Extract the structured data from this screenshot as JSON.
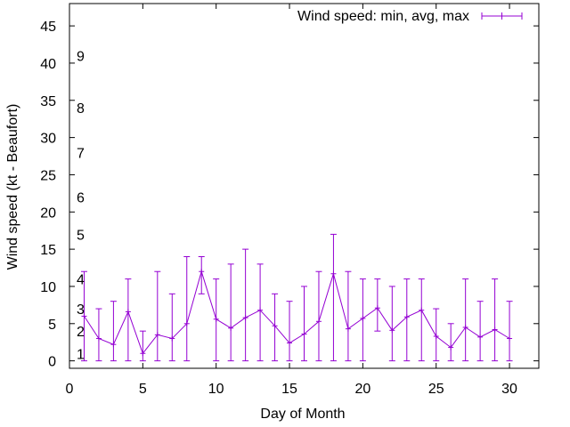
{
  "chart_data": {
    "type": "line",
    "title": "",
    "xlabel": "Day of Month",
    "ylabel": "Wind speed (kt - Beaufort)",
    "xlim": [
      0,
      32
    ],
    "ylim": [
      -1,
      48
    ],
    "x_ticks": [
      0,
      5,
      10,
      15,
      20,
      25,
      30
    ],
    "y_ticks": [
      0,
      5,
      10,
      15,
      20,
      25,
      30,
      35,
      40,
      45
    ],
    "grid": false,
    "legend": {
      "position": "top-right",
      "label": "Wind speed: min, avg, max"
    },
    "series_color": "#9400d3",
    "beaufort_labels": [
      {
        "label": "1",
        "value": 1
      },
      {
        "label": "2",
        "value": 4
      },
      {
        "label": "3",
        "value": 7
      },
      {
        "label": "4",
        "value": 11
      },
      {
        "label": "5",
        "value": 17
      },
      {
        "label": "6",
        "value": 22
      },
      {
        "label": "7",
        "value": 28
      },
      {
        "label": "8",
        "value": 34
      },
      {
        "label": "9",
        "value": 41
      }
    ],
    "series": [
      {
        "name": "Wind speed: min, avg, max",
        "x": [
          1,
          2,
          3,
          4,
          5,
          6,
          7,
          8,
          9,
          10,
          11,
          12,
          13,
          14,
          15,
          16,
          17,
          18,
          19,
          20,
          21,
          22,
          23,
          24,
          25,
          26,
          27,
          28,
          29,
          30
        ],
        "avg": [
          6,
          3,
          2.2,
          6.6,
          1,
          3.5,
          3,
          5,
          12,
          5.6,
          4.4,
          5.8,
          6.8,
          4.7,
          2.4,
          3.6,
          5.3,
          11.7,
          4.3,
          5.7,
          7.1,
          4.1,
          5.9,
          6.8,
          3.3,
          1.8,
          4.5,
          3.2,
          4.2,
          3
        ],
        "min": [
          0,
          0,
          0,
          0,
          0,
          0,
          0,
          0,
          9,
          0,
          0,
          0,
          0,
          0,
          0,
          0,
          0,
          0,
          0,
          0,
          4,
          0,
          0,
          0,
          0,
          0,
          0,
          0,
          0,
          0
        ],
        "max": [
          12,
          7,
          8,
          11,
          4,
          12,
          9,
          14,
          14,
          11,
          13,
          15,
          13,
          9,
          8,
          10,
          12,
          17,
          12,
          11,
          11,
          10,
          11,
          11,
          7,
          5,
          11,
          8,
          11,
          8
        ]
      }
    ]
  }
}
